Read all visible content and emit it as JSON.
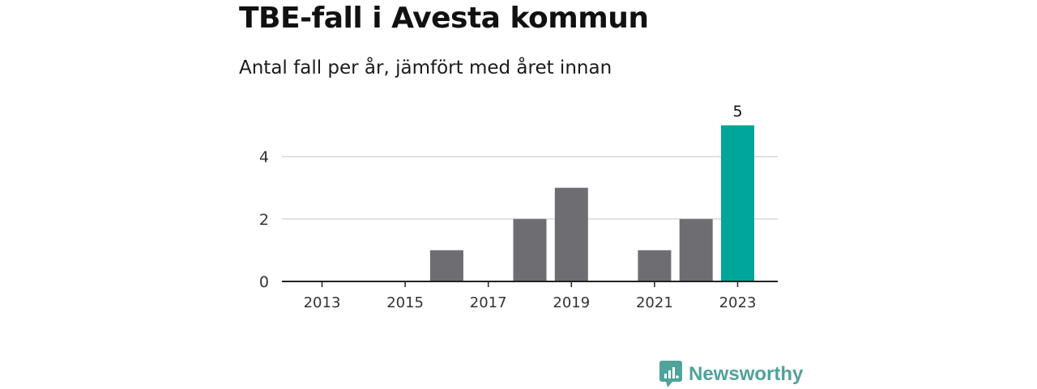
{
  "title": "TBE-fall i Avesta kommun",
  "subtitle": "Antal fall per år, jämfört med året innan",
  "brand": "Newsworthy",
  "colors": {
    "bar": "#6e6d72",
    "highlight": "#00a59a",
    "grid": "#d9d9d9",
    "axis": "#222222",
    "brand": "#4ea39a"
  },
  "chart_data": {
    "type": "bar",
    "categories": [
      "2013",
      "2014",
      "2015",
      "2016",
      "2017",
      "2018",
      "2019",
      "2020",
      "2021",
      "2022",
      "2023"
    ],
    "values": [
      0,
      0,
      0,
      1,
      0,
      2,
      3,
      0,
      1,
      2,
      5
    ],
    "highlight_category": "2023",
    "data_labels": [
      {
        "category": "2023",
        "text": "5"
      }
    ],
    "x_tick_labels": [
      "2013",
      "2015",
      "2017",
      "2019",
      "2021",
      "2023"
    ],
    "y_ticks": [
      0,
      2,
      4
    ],
    "ylim": [
      0,
      5
    ],
    "grid": true,
    "legend": "none",
    "xlabel": "",
    "ylabel": ""
  }
}
